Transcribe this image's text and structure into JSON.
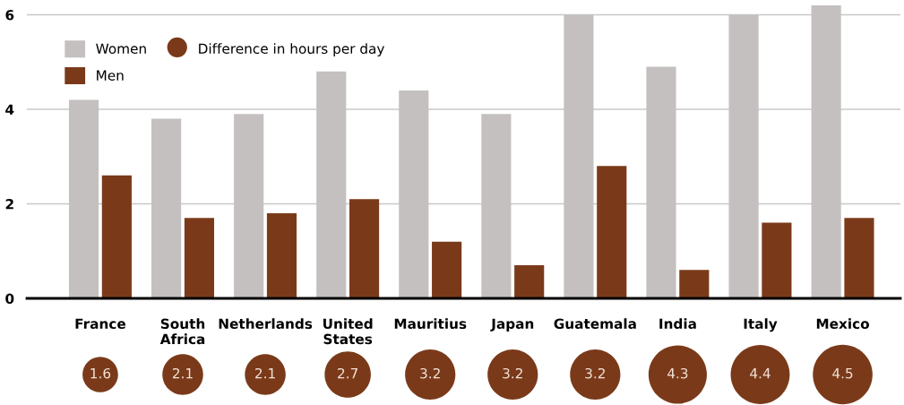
{
  "chart_data": [
    {
      "type": "bar",
      "categories": [
        "France",
        "South Africa",
        "Netherlands",
        "United States",
        "Mauritius",
        "Japan",
        "Guatemala",
        "India",
        "Italy",
        "Mexico"
      ],
      "series": [
        {
          "name": "Women",
          "color": "#c4c0bf",
          "values": [
            4.2,
            3.8,
            3.9,
            4.8,
            4.4,
            3.9,
            6.0,
            4.9,
            6.0,
            6.2
          ]
        },
        {
          "name": "Men",
          "color": "#7a3a1a",
          "values": [
            2.6,
            1.7,
            1.8,
            2.1,
            1.2,
            0.7,
            2.8,
            0.6,
            1.6,
            1.7
          ]
        }
      ],
      "ylim": [
        0,
        6.2
      ],
      "yticks": [
        0,
        2,
        4,
        6
      ],
      "grid": "y",
      "legend": "top left"
    },
    {
      "type": "other",
      "categories": [
        null,
        null,
        null,
        null,
        null,
        null,
        null,
        null,
        null,
        null
      ],
      "series": [
        {
          "name": "Difference in hours per day",
          "color": "#7a3a1a",
          "values": [
            1.6,
            2.1,
            2.1,
            2.7,
            3.2,
            3.2,
            3.2,
            4.3,
            4.4,
            4.5
          ]
        }
      ],
      "data_labels": true
    }
  ]
}
